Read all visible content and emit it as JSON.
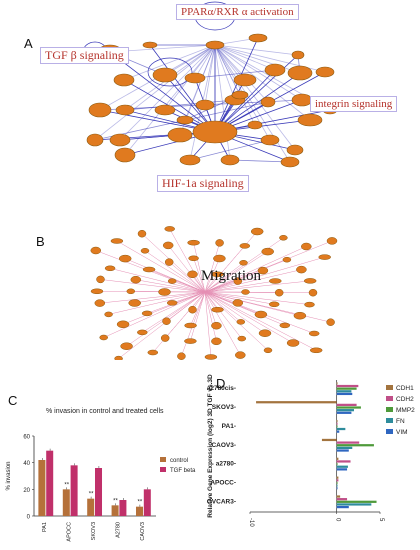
{
  "panels": {
    "a": "A",
    "b": "B",
    "c": "C",
    "d": "D"
  },
  "callouts": {
    "ppar": "PPARα/RXR α activation",
    "tgfb": "TGF β signaling",
    "integrin": "integrin signaling",
    "hif": "HIF-1a signaling"
  },
  "migration_label": "Migration",
  "colors": {
    "node_fill": "#e07a1f",
    "node_stroke": "#8a5a10",
    "edge": "#3a3ab8",
    "edge_pink": "#e58fb4",
    "callout_text": "#b5332c"
  },
  "chart_data": [
    {
      "type": "bar",
      "title": "% invasion in control and treated cells",
      "categories": [
        "PA1",
        "APOCC",
        "SKOV3",
        "A2780",
        "CAOV3"
      ],
      "ylabel": "% invasion",
      "ylim": [
        0,
        60
      ],
      "yticks": [
        "0",
        "20",
        "40",
        "60"
      ],
      "significance": [
        "",
        "**",
        "**",
        "**",
        "**"
      ],
      "legend_position": "right",
      "series": [
        {
          "name": "control",
          "color": "#b5713a",
          "values": [
            42,
            20,
            13,
            8,
            7
          ]
        },
        {
          "name": "TGF beta",
          "color": "#c0306a",
          "values": [
            49,
            38,
            36,
            12,
            20
          ]
        }
      ]
    },
    {
      "type": "bar",
      "orientation": "horizontal",
      "categories": [
        "a2780cis-",
        "SKOV3-",
        "PA1-",
        "CAOV3-",
        "a2780-",
        "APOCC-",
        "OVCAR3-"
      ],
      "ylabel": "Relative Gene Expression (log2) 3D TGF vs.3D",
      "xlim": [
        -10,
        5
      ],
      "xticks": [
        "-10",
        "0",
        "5"
      ],
      "legend_position": "right",
      "series": [
        {
          "name": "CDH1",
          "color": "#a3743f",
          "values": [
            0.1,
            -9.3,
            0.1,
            -1.7,
            0.2,
            0.2,
            0.4
          ]
        },
        {
          "name": "CDH2",
          "color": "#c04f88",
          "values": [
            2.5,
            2.3,
            0.1,
            2.6,
            1.6,
            0.2,
            1.2
          ]
        },
        {
          "name": "MMP2",
          "color": "#4f9a3b",
          "values": [
            2.3,
            2.8,
            0.1,
            4.3,
            0.1,
            0.1,
            4.6
          ]
        },
        {
          "name": "FN",
          "color": "#2e8c9c",
          "values": [
            1.7,
            2.0,
            1.0,
            1.8,
            1.3,
            0.1,
            4.0
          ]
        },
        {
          "name": "VIM",
          "color": "#2f66c0",
          "values": [
            1.8,
            1.7,
            0.3,
            1.4,
            1.2,
            0.1,
            1.4
          ]
        }
      ]
    }
  ]
}
